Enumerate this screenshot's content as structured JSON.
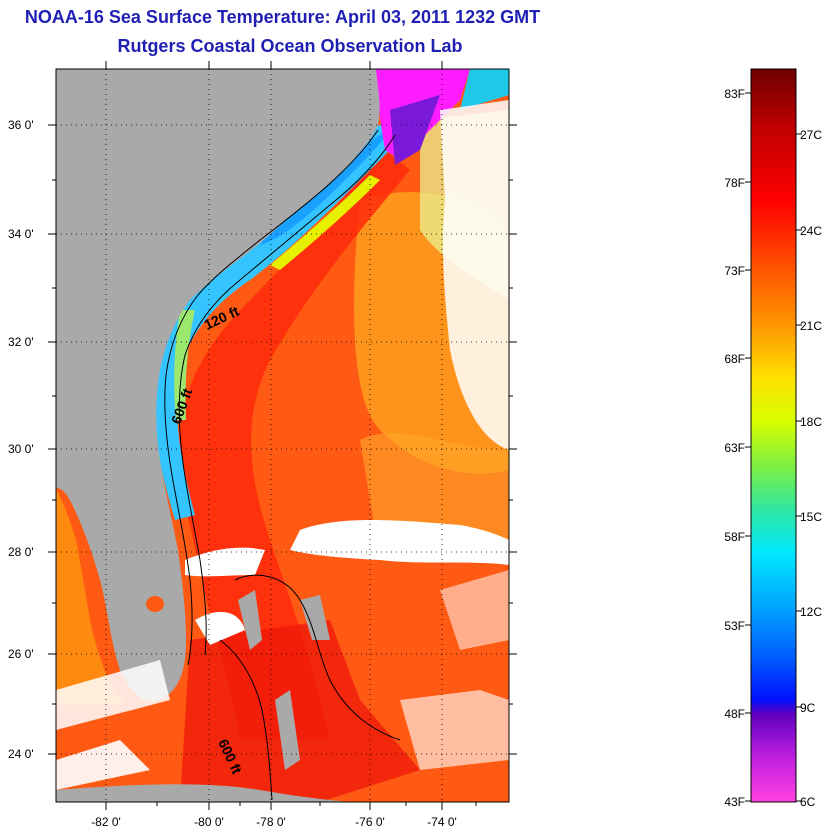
{
  "header": {
    "title": "NOAA-16 Sea Surface Temperature:  April 03, 2011 1232 GMT",
    "subtitle": "Rutgers Coastal Ocean Observation Lab"
  },
  "map": {
    "lat_ticks": [
      "36 0'",
      "34 0'",
      "32 0'",
      "30 0'",
      "28 0'",
      "26 0'",
      "24 0'"
    ],
    "lon_ticks": [
      "-82 0'",
      "-80 0'",
      "-78 0'",
      "-76 0'",
      "-74 0'"
    ],
    "contour_labels": [
      "120 ft",
      "600 ft",
      "600 ft"
    ],
    "colors": {
      "land": "#a9a9a9",
      "cloud": "#ffffff",
      "warm_water": "#ff5a14",
      "gulf_stream": "#ff2a0a",
      "shelf_water": "#34c4ff",
      "cold_water": "#ff1cff"
    }
  },
  "colorbar": {
    "fahrenheit_labels": [
      "83F",
      "78F",
      "73F",
      "68F",
      "63F",
      "58F",
      "53F",
      "48F",
      "43F"
    ],
    "celsius_labels": [
      "27C",
      "24C",
      "21C",
      "18C",
      "15C",
      "12C",
      "9C",
      "6C"
    ],
    "colors_top_to_bottom": [
      "#6e0000",
      "#c00000",
      "#ff0000",
      "#ff5a00",
      "#ffa000",
      "#ffe000",
      "#d8ff00",
      "#80f040",
      "#30e8a0",
      "#00e8ff",
      "#00a8ff",
      "#0060ff",
      "#0010ff",
      "#6000c0",
      "#c020e0",
      "#ff40e0"
    ]
  }
}
